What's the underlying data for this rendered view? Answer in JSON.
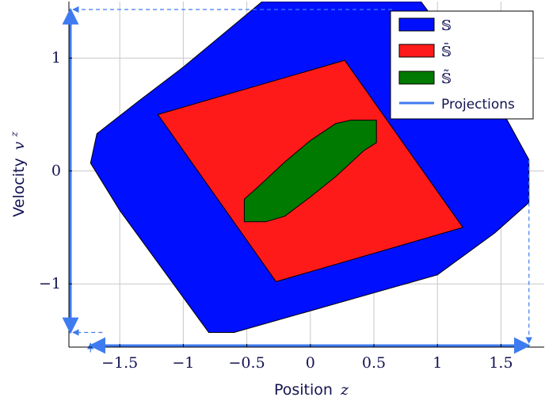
{
  "chart_data": {
    "type": "area",
    "title": "",
    "xlabel": "Position",
    "xlabel_symbol": "z",
    "ylabel": "Velocity",
    "ylabel_symbol": "v",
    "ylabel_symbol_sup": "z",
    "xlim": [
      -1.9,
      1.84
    ],
    "ylim": [
      -1.56,
      1.5
    ],
    "grid": true,
    "legend_position": "top-right",
    "xticks": [
      -1.5,
      -1,
      -0.5,
      0,
      0.5,
      1,
      1.5
    ],
    "xtick_labels": [
      "−1.5",
      "−1",
      "−0.5",
      "0",
      "0.5",
      "1",
      "1.5"
    ],
    "yticks": [
      -1,
      0,
      1
    ],
    "ytick_labels": [
      "−1",
      "0",
      "1"
    ],
    "series": [
      {
        "name": "𝕊",
        "color": "#0010ff",
        "points": [
          [
            -0.38,
            1.5
          ],
          [
            -1.0,
            0.92
          ],
          [
            -1.35,
            0.62
          ],
          [
            -1.68,
            0.33
          ],
          [
            -1.73,
            0.07
          ],
          [
            -1.5,
            -0.35
          ],
          [
            -0.8,
            -1.43
          ],
          [
            -0.6,
            -1.43
          ],
          [
            1.0,
            -0.92
          ],
          [
            1.45,
            -0.55
          ],
          [
            1.72,
            -0.28
          ],
          [
            1.72,
            0.1
          ],
          [
            1.5,
            0.55
          ],
          [
            0.87,
            1.5
          ]
        ]
      },
      {
        "name": "𝕊̄",
        "color": "#ff1a1a",
        "points": [
          [
            -1.2,
            0.5
          ],
          [
            0.27,
            0.98
          ],
          [
            1.2,
            -0.5
          ],
          [
            -0.27,
            -0.98
          ]
        ]
      },
      {
        "name": "𝕊̃",
        "color": "#007a00",
        "points": [
          [
            -0.52,
            -0.25
          ],
          [
            -0.52,
            -0.45
          ],
          [
            -0.35,
            -0.45
          ],
          [
            -0.2,
            -0.4
          ],
          [
            0.0,
            -0.23
          ],
          [
            0.2,
            -0.05
          ],
          [
            0.42,
            0.18
          ],
          [
            0.52,
            0.25
          ],
          [
            0.52,
            0.45
          ],
          [
            0.32,
            0.45
          ],
          [
            0.2,
            0.42
          ],
          [
            0.0,
            0.27
          ],
          [
            -0.2,
            0.08
          ],
          [
            -0.42,
            -0.15
          ]
        ]
      }
    ],
    "projections": {
      "name": "Projections",
      "color": "#3f7bf0",
      "x_range": [
        -1.73,
        1.72
      ],
      "y_range": [
        -1.43,
        1.43
      ]
    }
  }
}
